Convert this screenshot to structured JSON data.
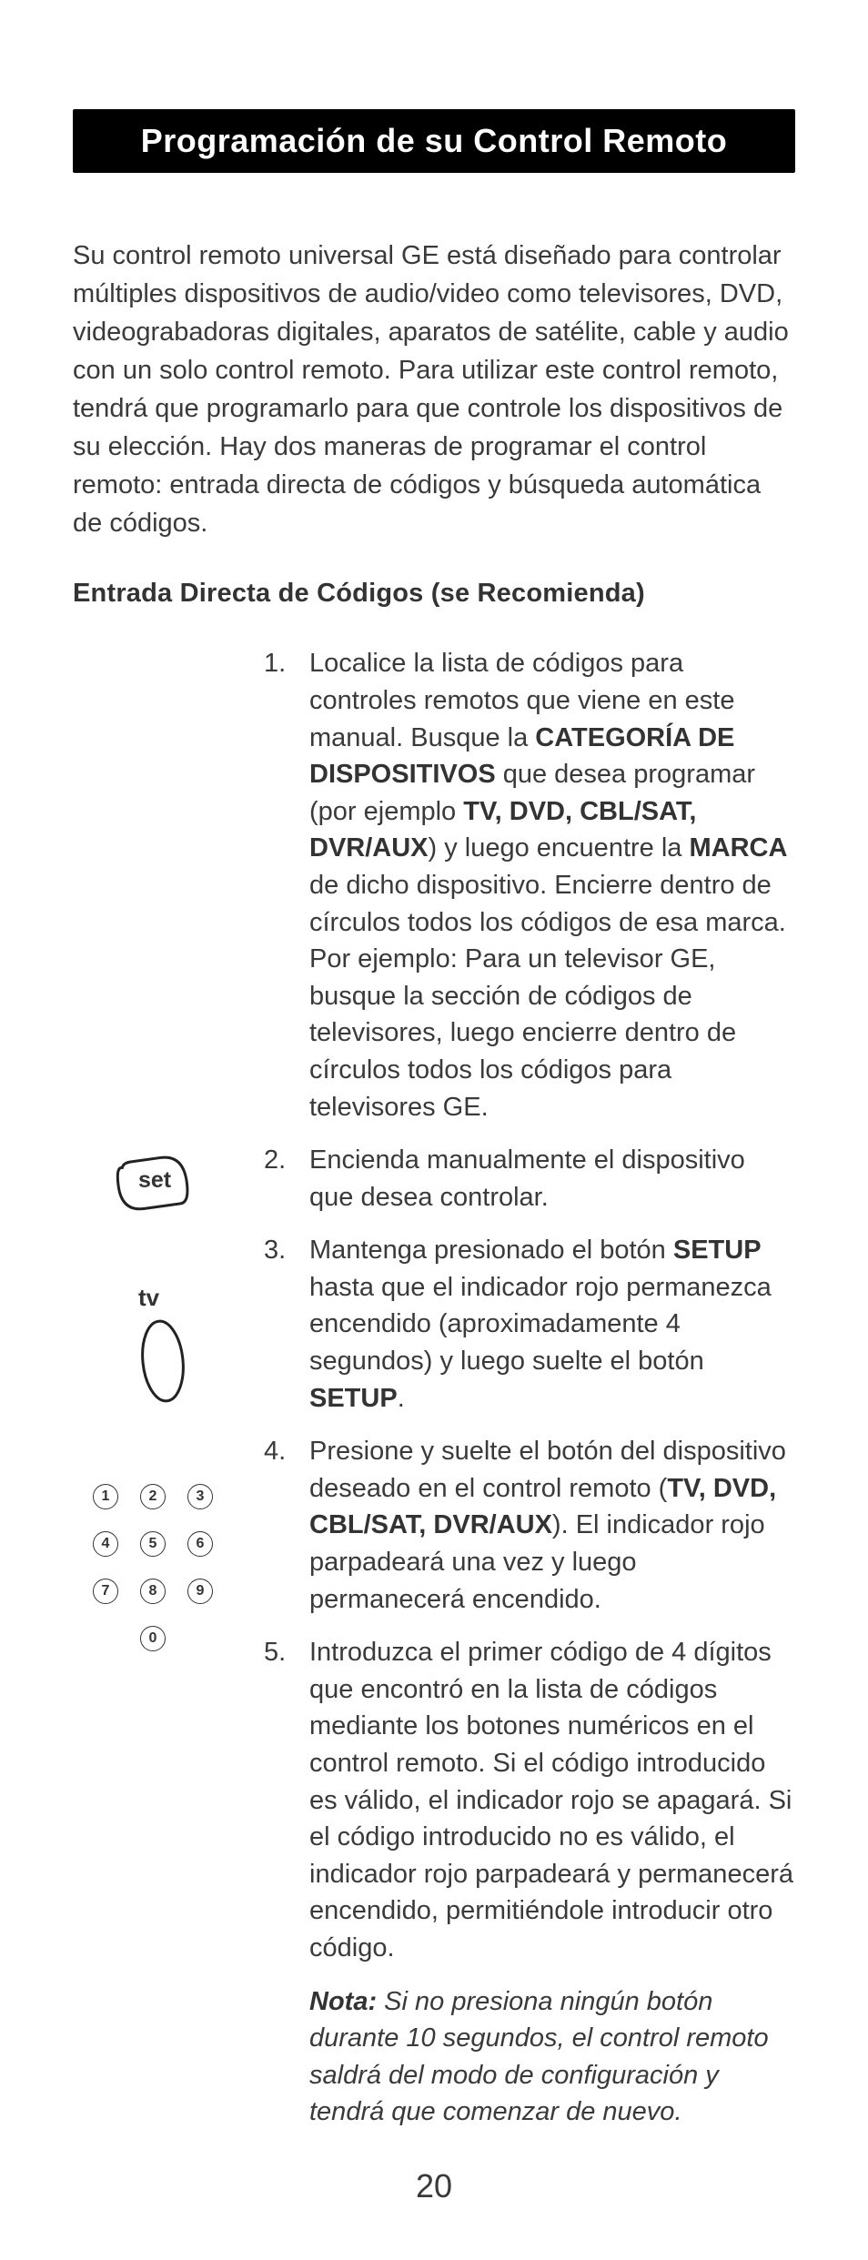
{
  "title": "Programación de su Control Remoto",
  "intro_html": "Su control remoto universal GE está diseñado para controlar múltiples dispositivos de audio/video como televisores, DVD, videograbadoras digitales, aparatos de satélite, cable y audio con un solo control remoto. Para utilizar este control remoto, tendrá que programarlo para que controle los dispositivos de su elección. Hay dos maneras de programar el control remoto: entrada directa de códigos y búsqueda automática de códigos.",
  "subheading": "Entrada Directa de Códigos (se Recomienda)",
  "steps": [
    "Localice la lista de códigos para controles remotos que viene en este manual. Busque la <b>CATEGORÍA DE DISPOSITIVOS</b> que desea programar (por ejemplo <b>TV, DVD, CBL/SAT, DVR/AUX</b>) y luego encuentre la <b>MARCA</b> de dicho dispositivo. Encierre dentro de círculos todos los códigos de esa marca. Por ejemplo: Para un televisor GE, busque la sección de códigos de televisores, luego encierre dentro de círculos todos los códigos para televisores GE.",
    "Encienda manualmente el dispositivo que desea controlar.",
    "Mantenga presionado el botón <b>SETUP</b> hasta que el indicador rojo permanezca encendido (aproximadamente 4 segundos) y luego suelte el botón <b>SETUP</b>.",
    "Presione y suelte el botón del dispositivo deseado en el control remoto (<b>TV, DVD, CBL/SAT, DVR/AUX</b>). El indicador rojo parpadeará una vez y luego permanecerá encendido.",
    "Introduzca el primer código de 4 dígitos que encontró en la lista de códigos mediante los botones numéricos en el control remoto. Si el código introducido es válido, el indicador rojo se apagará. Si el código introducido no es válido, el indicador rojo parpadeará y permanecerá encendido, permitiéndole introducir otro código."
  ],
  "note_html": "<b>Nota:</b> Si no presiona ningún botón durante 10 segundos, el control remoto saldrá del modo de configuración y tendrá que comenzar de nuevo.",
  "left_icons": {
    "set_label": "set",
    "tv_label": "tv",
    "keypad": [
      "1",
      "2",
      "3",
      "4",
      "5",
      "6",
      "7",
      "8",
      "9",
      "0"
    ]
  },
  "page_number": "20",
  "colors": {
    "title_bg": "#000000",
    "title_fg": "#ffffff",
    "text": "#3a3a3a",
    "stroke": "#222222"
  }
}
